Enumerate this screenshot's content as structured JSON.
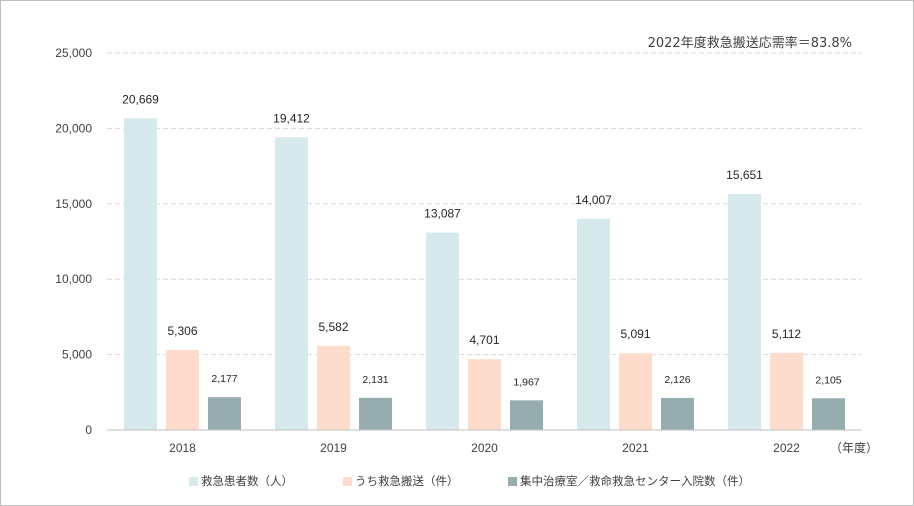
{
  "chart_data": {
    "type": "bar",
    "categories": [
      "2018",
      "2019",
      "2020",
      "2021",
      "2022"
    ],
    "series": [
      {
        "name": "救急患者数（人）",
        "values": [
          20669,
          19412,
          13087,
          14007,
          15651
        ],
        "labels": [
          "20,669",
          "19,412",
          "13,087",
          "14,007",
          "15,651"
        ],
        "color": "#d6e9ec"
      },
      {
        "name": "うち救急搬送（件）",
        "values": [
          5306,
          5582,
          4701,
          5091,
          5112
        ],
        "labels": [
          "5,306",
          "5,582",
          "4,701",
          "5,091",
          "5,112"
        ],
        "color": "#fddccb"
      },
      {
        "name": "集中治療室／救命救急センター入院数（件）",
        "values": [
          2177,
          2131,
          1967,
          2126,
          2105
        ],
        "labels": [
          "2,177",
          "2,131",
          "1,967",
          "2,126",
          "2,105"
        ],
        "color": "#95adaf"
      }
    ],
    "ylim": [
      0,
      25000
    ],
    "yticks": [
      "0",
      "5,000",
      "10,000",
      "15,000",
      "20,000",
      "25,000"
    ],
    "ytick_values": [
      0,
      5000,
      10000,
      15000,
      20000,
      25000
    ],
    "x_unit_label": "（年度）",
    "annotation": "2022年度救急搬送応需率＝83.8%",
    "grid": true,
    "legend_position": "bottom"
  }
}
